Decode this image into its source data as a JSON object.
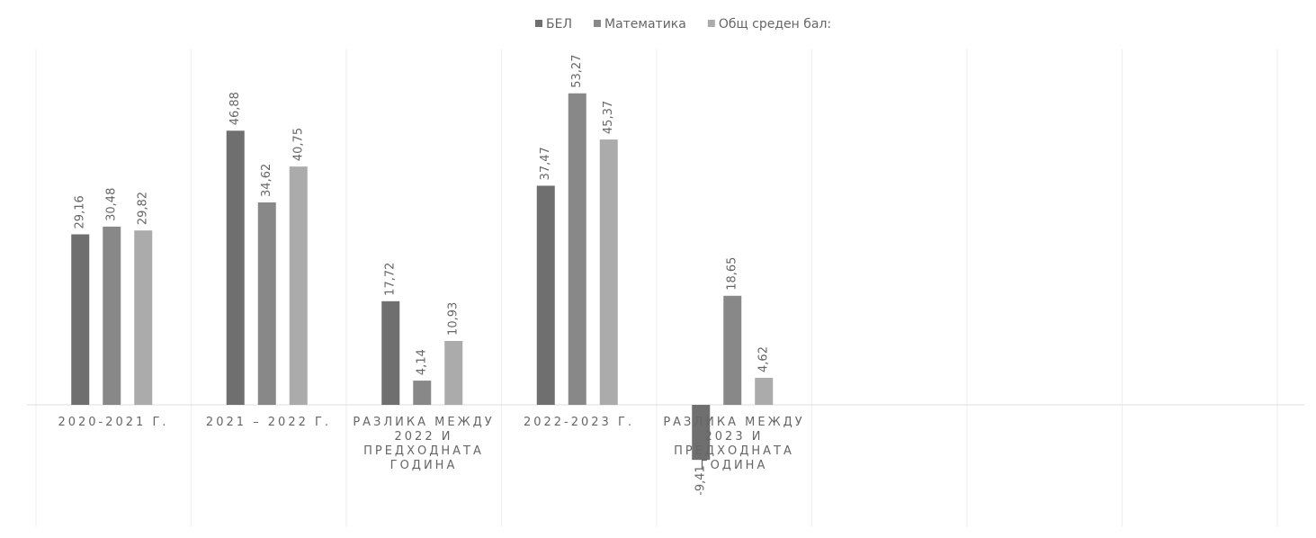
{
  "chart_data": {
    "type": "bar",
    "categories": [
      "2020-2021 Г.",
      "2021 – 2022 Г.",
      "РАЗЛИКА МЕЖДУ 2022 И ПРЕДХОДНАТА ГОДИНА",
      "2022-2023 Г.",
      "РАЗЛИКА МЕЖДУ 2023 И ПРЕДХОДНАТА ГОДИНА",
      null,
      null,
      null
    ],
    "series": [
      {
        "name": "БЕЛ",
        "color": "#6f6f6f",
        "values": [
          29.16,
          46.88,
          17.72,
          37.47,
          -9.41,
          null,
          null,
          null
        ],
        "value_labels": [
          "29,16",
          "46,88",
          "17,72",
          "37,47",
          "-9,41",
          null,
          null,
          null
        ]
      },
      {
        "name": "Математика",
        "color": "#888888",
        "values": [
          30.48,
          34.62,
          4.14,
          53.27,
          18.65,
          null,
          null,
          null
        ],
        "value_labels": [
          "30,48",
          "34,62",
          "4,14",
          "53,27",
          "18,65",
          null,
          null,
          null
        ]
      },
      {
        "name": "Общ среден бал:",
        "color": "#ababab",
        "values": [
          29.82,
          40.75,
          10.93,
          45.37,
          4.62,
          null,
          null,
          null
        ],
        "value_labels": [
          "29,82",
          "40,75",
          "10,93",
          "45,37",
          "4,62",
          null,
          null,
          null
        ]
      }
    ],
    "ylim": [
      -20,
      60
    ],
    "legend": "top"
  }
}
